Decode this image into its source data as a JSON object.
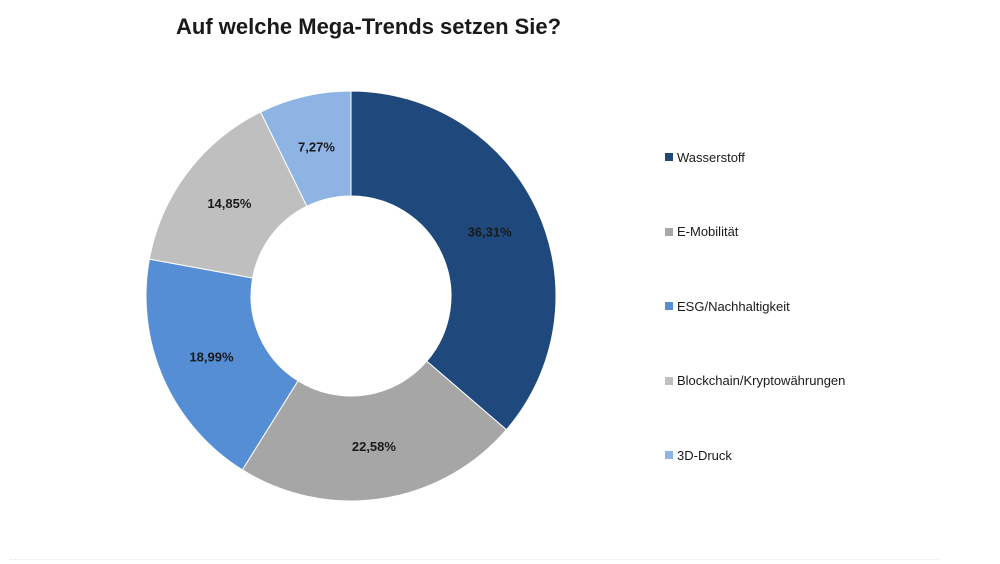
{
  "chart_data": {
    "type": "pie",
    "variant": "donut",
    "title": "Auf welche Mega-Trends setzen Sie?",
    "categories": [
      "Wasserstoff",
      "E-Mobilität",
      "ESG/Nachhaltigkeit",
      "Blockchain/Kryptowährungen",
      "3D-Druck"
    ],
    "values": [
      36.31,
      22.58,
      18.99,
      14.85,
      7.27
    ],
    "labels": [
      "36,31%",
      "22,58%",
      "18,99%",
      "14,85%",
      "7,27%"
    ],
    "colors": [
      "#1f497d",
      "#a6a6a6",
      "#558ed5",
      "#bfbfbf",
      "#8eb4e3"
    ],
    "legend_position": "right"
  }
}
